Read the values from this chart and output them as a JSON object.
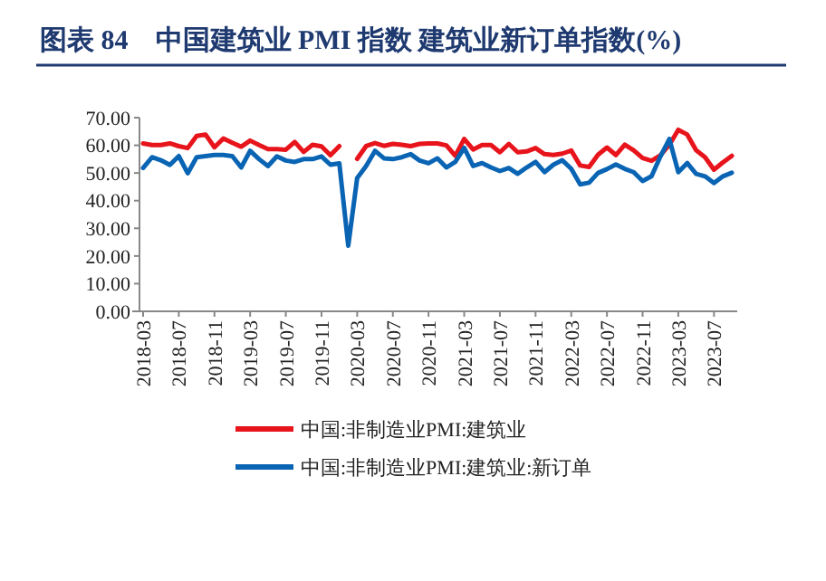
{
  "chart_data": {
    "type": "line",
    "title": "图表 84　中国建筑业 PMI 指数  建筑业新订单指数(%)",
    "categories": [
      "2018-03",
      null,
      null,
      null,
      "2018-07",
      null,
      null,
      null,
      "2018-11",
      null,
      null,
      null,
      "2019-03",
      null,
      null,
      null,
      "2019-07",
      null,
      null,
      null,
      "2019-11",
      null,
      null,
      null,
      "2020-03",
      null,
      null,
      null,
      "2020-07",
      null,
      null,
      null,
      "2020-11",
      null,
      null,
      null,
      "2021-03",
      null,
      null,
      null,
      "2021-07",
      null,
      null,
      null,
      "2021-11",
      null,
      null,
      null,
      "2022-03",
      null,
      null,
      null,
      "2022-07",
      null,
      null,
      null,
      "2022-11",
      null,
      null,
      null,
      "2023-03",
      null,
      null,
      null,
      "2023-07",
      null,
      null
    ],
    "series": [
      {
        "name": "中国:非制造业PMI:建筑业",
        "color": "#e8141c",
        "values": [
          60.7,
          60.1,
          60.1,
          60.7,
          59.7,
          59.0,
          63.4,
          63.9,
          59.3,
          62.5,
          60.9,
          59.5,
          61.7,
          60.1,
          58.6,
          58.6,
          58.4,
          61.2,
          57.6,
          60.2,
          59.6,
          56.4,
          59.7,
          null,
          55.1,
          59.7,
          60.8,
          59.8,
          60.5,
          60.2,
          59.7,
          60.5,
          60.7,
          60.7,
          60.0,
          56.2,
          62.3,
          58.5,
          60.1,
          60.1,
          57.5,
          60.5,
          57.5,
          57.8,
          59.0,
          56.8,
          56.5,
          57.0,
          58.1,
          52.7,
          52.2,
          56.6,
          59.2,
          56.5,
          60.2,
          58.2,
          55.4,
          54.4,
          56.4,
          60.2,
          65.6,
          63.9,
          58.2,
          55.7,
          51.2,
          53.8,
          56.2
        ]
      },
      {
        "name": "中国:非制造业PMI:建筑业:新订单",
        "color": "#0a64b4",
        "values": [
          51.8,
          55.7,
          54.6,
          52.9,
          56.1,
          49.9,
          55.7,
          56.1,
          56.5,
          56.5,
          56.1,
          52.0,
          58.0,
          55.0,
          52.5,
          56.0,
          54.5,
          54.0,
          55.0,
          55.0,
          56.0,
          53.0,
          53.5,
          23.7,
          48.2,
          52.5,
          58.0,
          55.3,
          55.0,
          55.7,
          56.8,
          54.5,
          53.5,
          55.3,
          52.0,
          54.0,
          59.1,
          52.5,
          53.6,
          52.0,
          50.7,
          51.8,
          49.7,
          52.0,
          54.0,
          50.3,
          53.0,
          54.6,
          51.5,
          45.9,
          46.5,
          50.0,
          51.4,
          53.1,
          51.5,
          50.3,
          47.1,
          48.8,
          56.0,
          62.3,
          50.3,
          53.6,
          49.7,
          48.8,
          46.4,
          48.8,
          50.1
        ]
      }
    ],
    "ylim": [
      0,
      70
    ],
    "yticks": [
      {
        "value": 0,
        "label": "0.00"
      },
      {
        "value": 10,
        "label": "10.00"
      },
      {
        "value": 20,
        "label": "20.00"
      },
      {
        "value": 30,
        "label": "30.00"
      },
      {
        "value": 40,
        "label": "40.00"
      },
      {
        "value": 50,
        "label": "50.00"
      },
      {
        "value": 60,
        "label": "60.00"
      },
      {
        "value": 70,
        "label": "70.00"
      }
    ],
    "legend": "bottom"
  }
}
